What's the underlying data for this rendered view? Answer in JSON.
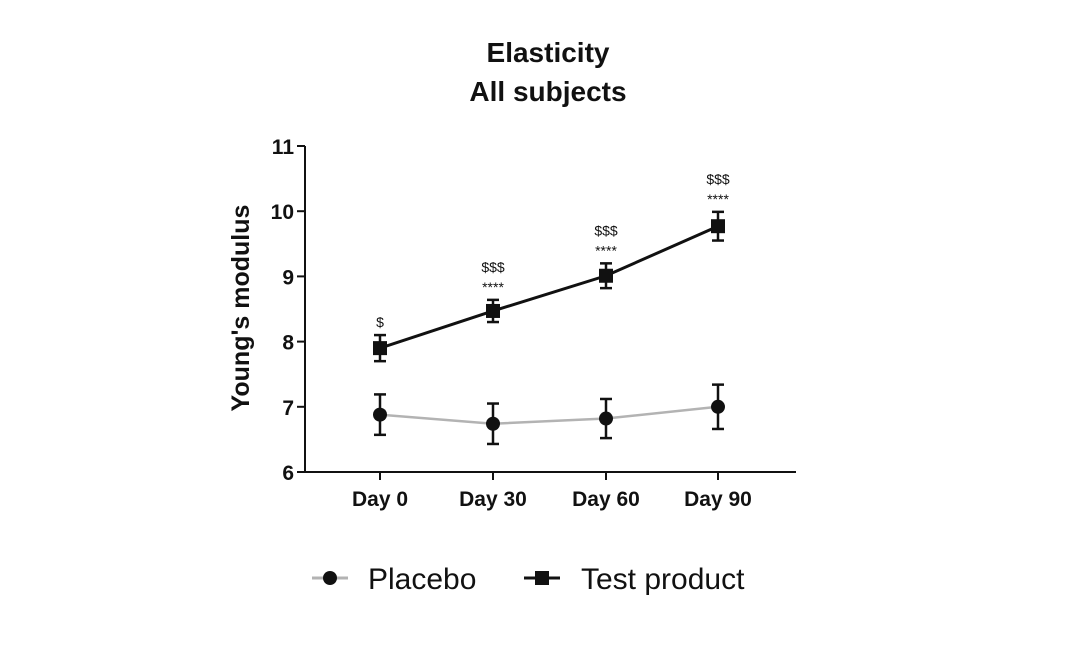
{
  "chart_data": {
    "type": "line",
    "title": [
      "Elasticity",
      "All subjects"
    ],
    "xlabel": "",
    "ylabel": "Young's modulus",
    "ylim": [
      6,
      11
    ],
    "yticks": [
      "6",
      "7",
      "8",
      "9",
      "10",
      "11"
    ],
    "categories": [
      "Day 0",
      "Day 30",
      "Day 60",
      "Day 90"
    ],
    "grid": false,
    "legend_position": "bottom",
    "series": [
      {
        "name": "Placebo",
        "marker": "circle",
        "line_color": "#b3b3b3",
        "marker_color": "#111111",
        "values": [
          6.88,
          6.74,
          6.82,
          7.0
        ],
        "error": [
          0.31,
          0.31,
          0.3,
          0.34
        ]
      },
      {
        "name": "Test product",
        "marker": "square",
        "line_color": "#111111",
        "marker_color": "#111111",
        "values": [
          7.9,
          8.47,
          9.01,
          9.77
        ],
        "error": [
          0.2,
          0.17,
          0.19,
          0.22
        ]
      }
    ],
    "annotations": [
      {
        "category": "Day 0",
        "lines": [
          "$"
        ]
      },
      {
        "category": "Day 30",
        "lines": [
          "$$$",
          "****"
        ]
      },
      {
        "category": "Day 60",
        "lines": [
          "$$$",
          "****"
        ]
      },
      {
        "category": "Day 90",
        "lines": [
          "$$$",
          "****"
        ]
      }
    ]
  }
}
